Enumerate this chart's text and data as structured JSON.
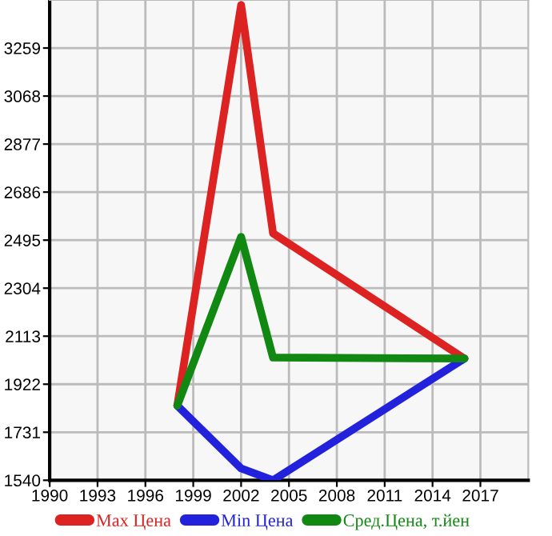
{
  "chart_data": {
    "type": "line",
    "x": [
      1998,
      2002,
      2004,
      2016
    ],
    "series": [
      {
        "name": "Max Цена",
        "color": "#dd2222",
        "values": [
          1837,
          3430,
          2522,
          2024
        ]
      },
      {
        "name": "Min Цена",
        "color": "#2222dd",
        "values": [
          1837,
          1587,
          1540,
          2024
        ]
      },
      {
        "name": "Сред.Цена, т.йен",
        "color": "#118811",
        "values": [
          1837,
          2508,
          2028,
          2024
        ]
      }
    ],
    "xlim": [
      1990,
      2020
    ],
    "xticks": [
      1990,
      1993,
      1996,
      1999,
      2002,
      2005,
      2008,
      2011,
      2014,
      2017
    ],
    "ylim": [
      1540,
      3450
    ],
    "yticks": [
      1540,
      1731,
      1922,
      2113,
      2304,
      2495,
      2686,
      2877,
      3068,
      3259
    ],
    "grid": true,
    "legend": "bottom",
    "marker": "none",
    "line_style": "solid"
  }
}
